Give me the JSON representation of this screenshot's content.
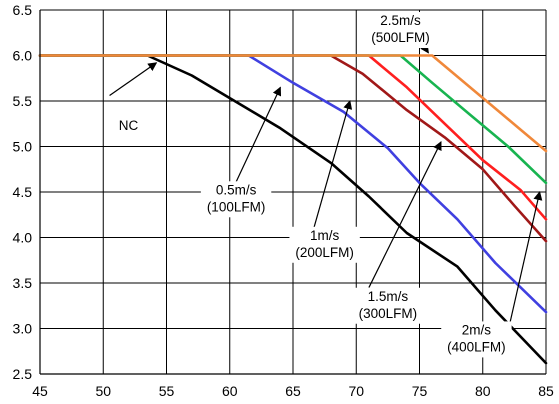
{
  "chart_data": {
    "type": "line",
    "title": "",
    "xlabel": "",
    "ylabel": "",
    "xlim": [
      45,
      85
    ],
    "ylim": [
      2.5,
      6.5
    ],
    "x_ticks": [
      "45",
      "50",
      "55",
      "60",
      "65",
      "70",
      "75",
      "80",
      "85"
    ],
    "y_ticks": [
      "2.5",
      "3.0",
      "3.5",
      "4.0",
      "4.5",
      "5.0",
      "5.5",
      "6.0",
      "6.5"
    ],
    "grid": true,
    "series": [
      {
        "color": "#000000",
        "points": [
          [
            45,
            6.0
          ],
          [
            53.5,
            6.0
          ],
          [
            57,
            5.78
          ],
          [
            61,
            5.45
          ],
          [
            64,
            5.2
          ],
          [
            68,
            4.82
          ],
          [
            71,
            4.45
          ],
          [
            74,
            4.05
          ],
          [
            78,
            3.68
          ],
          [
            81,
            3.2
          ],
          [
            85,
            2.62
          ]
        ]
      },
      {
        "color": "#4040e0",
        "points": [
          [
            45,
            6.0
          ],
          [
            61.5,
            6.0
          ],
          [
            65,
            5.7
          ],
          [
            69,
            5.38
          ],
          [
            72.5,
            4.98
          ],
          [
            75,
            4.6
          ],
          [
            78,
            4.2
          ],
          [
            81,
            3.72
          ],
          [
            85,
            3.18
          ]
        ]
      },
      {
        "color": "#a01818",
        "points": [
          [
            45,
            6.0
          ],
          [
            68,
            6.0
          ],
          [
            70.5,
            5.8
          ],
          [
            74,
            5.4
          ],
          [
            77,
            5.1
          ],
          [
            80,
            4.75
          ],
          [
            82.5,
            4.35
          ],
          [
            85,
            3.96
          ]
        ]
      },
      {
        "color": "#ff1f1f",
        "points": [
          [
            45,
            6.0
          ],
          [
            71,
            6.0
          ],
          [
            74,
            5.65
          ],
          [
            77,
            5.25
          ],
          [
            80,
            4.85
          ],
          [
            83,
            4.52
          ],
          [
            85,
            4.2
          ]
        ]
      },
      {
        "color": "#18b450",
        "points": [
          [
            45,
            6.0
          ],
          [
            73.5,
            6.0
          ],
          [
            76,
            5.7
          ],
          [
            79,
            5.35
          ],
          [
            82,
            5.0
          ],
          [
            85,
            4.6
          ]
        ]
      },
      {
        "color": "#f0883a",
        "points": [
          [
            45,
            6.0
          ],
          [
            76,
            6.0
          ],
          [
            85,
            4.95
          ]
        ]
      }
    ],
    "annotations": [
      {
        "lines": [
          "NC"
        ],
        "text_at": [
          52,
          5.22
        ],
        "arrow_from": [
          50.5,
          5.56
        ],
        "arrow_to": [
          54.2,
          5.92
        ]
      },
      {
        "lines": [
          "0.5m/s",
          "(100LFM)"
        ],
        "text_at": [
          60.5,
          4.42
        ],
        "arrow_from": [
          60.5,
          4.61
        ],
        "arrow_to": [
          64,
          5.65
        ]
      },
      {
        "lines": [
          "1m/s",
          "(200LFM)"
        ],
        "text_at": [
          67.5,
          3.92
        ],
        "arrow_from": [
          66.6,
          4.08
        ],
        "arrow_to": [
          69.5,
          5.5
        ]
      },
      {
        "lines": [
          "1.5m/s",
          "(300LFM)"
        ],
        "text_at": [
          72.5,
          3.25
        ],
        "arrow_from": [
          71,
          3.45
        ],
        "arrow_to": [
          76.7,
          5.05
        ]
      },
      {
        "lines": [
          "2m/s",
          "(400LFM)"
        ],
        "text_at": [
          79.5,
          2.88
        ],
        "arrow_from": [
          82,
          2.97
        ],
        "arrow_to": [
          84.5,
          4.5
        ]
      },
      {
        "lines": [
          "2.5m/s",
          "(500LFM)"
        ],
        "text_at": [
          73.5,
          6.28
        ],
        "arrow_from": [
          74.5,
          6.28
        ],
        "arrow_to": [
          75.7,
          6.03
        ]
      }
    ]
  }
}
